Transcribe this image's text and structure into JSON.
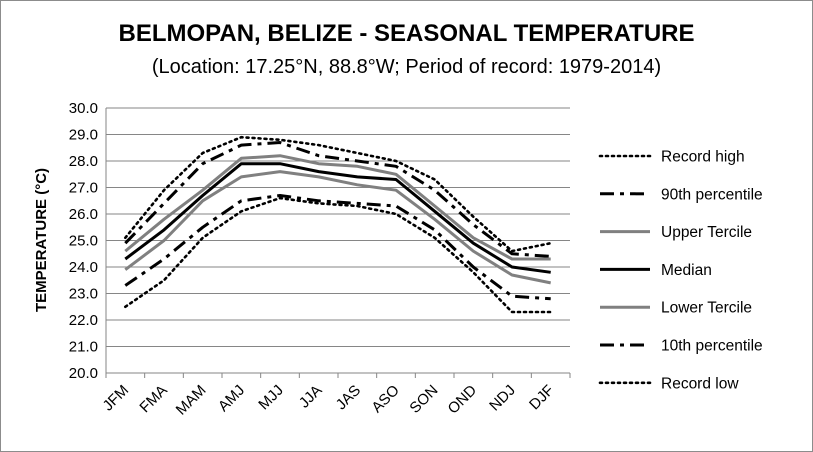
{
  "chart_data": {
    "type": "line",
    "title": "BELMOPAN, BELIZE - SEASONAL TEMPERATURE",
    "subtitle": "(Location: 17.25°N, 88.8°W; Period of record: 1979-2014)",
    "xlabel": "",
    "ylabel": "TEMPERATURE (°C)",
    "ylim": [
      20.0,
      30.0
    ],
    "yticks": [
      "20.0",
      "21.0",
      "22.0",
      "23.0",
      "24.0",
      "25.0",
      "26.0",
      "27.0",
      "28.0",
      "29.0",
      "30.0"
    ],
    "categories": [
      "JFM",
      "FMA",
      "MAM",
      "AMJ",
      "MJJ",
      "JJA",
      "JAS",
      "ASO",
      "SON",
      "OND",
      "NDJ",
      "DJF"
    ],
    "grid": true,
    "legend_position": "right",
    "series": [
      {
        "name": "Record high",
        "style": "dotted",
        "color": "#000000",
        "values": [
          25.1,
          26.9,
          28.3,
          28.9,
          28.8,
          28.6,
          28.3,
          28.0,
          27.3,
          25.9,
          24.6,
          24.9
        ]
      },
      {
        "name": "90th percentile",
        "style": "dashdot",
        "color": "#000000",
        "values": [
          24.9,
          26.4,
          27.9,
          28.6,
          28.7,
          28.2,
          28.0,
          27.8,
          26.9,
          25.6,
          24.5,
          24.4
        ]
      },
      {
        "name": "Upper Tercile",
        "style": "solid",
        "color": "#808080",
        "values": [
          24.6,
          25.8,
          26.9,
          28.1,
          28.2,
          27.9,
          27.8,
          27.5,
          26.3,
          25.1,
          24.3,
          24.3
        ]
      },
      {
        "name": "Median",
        "style": "solid",
        "color": "#000000",
        "values": [
          24.3,
          25.4,
          26.7,
          27.9,
          27.9,
          27.6,
          27.4,
          27.3,
          26.1,
          24.9,
          24.0,
          23.8
        ]
      },
      {
        "name": "Lower Tercile",
        "style": "solid",
        "color": "#808080",
        "values": [
          23.9,
          25.0,
          26.5,
          27.4,
          27.6,
          27.4,
          27.1,
          26.9,
          25.8,
          24.6,
          23.7,
          23.4
        ]
      },
      {
        "name": "10th percentile",
        "style": "dashdot",
        "color": "#000000",
        "values": [
          23.3,
          24.3,
          25.5,
          26.5,
          26.7,
          26.5,
          26.4,
          26.3,
          25.4,
          24.0,
          22.9,
          22.8
        ]
      },
      {
        "name": "Record low",
        "style": "dotted",
        "color": "#000000",
        "values": [
          22.5,
          23.5,
          25.1,
          26.1,
          26.6,
          26.4,
          26.3,
          26.0,
          25.1,
          23.8,
          22.3,
          22.3
        ]
      }
    ]
  }
}
